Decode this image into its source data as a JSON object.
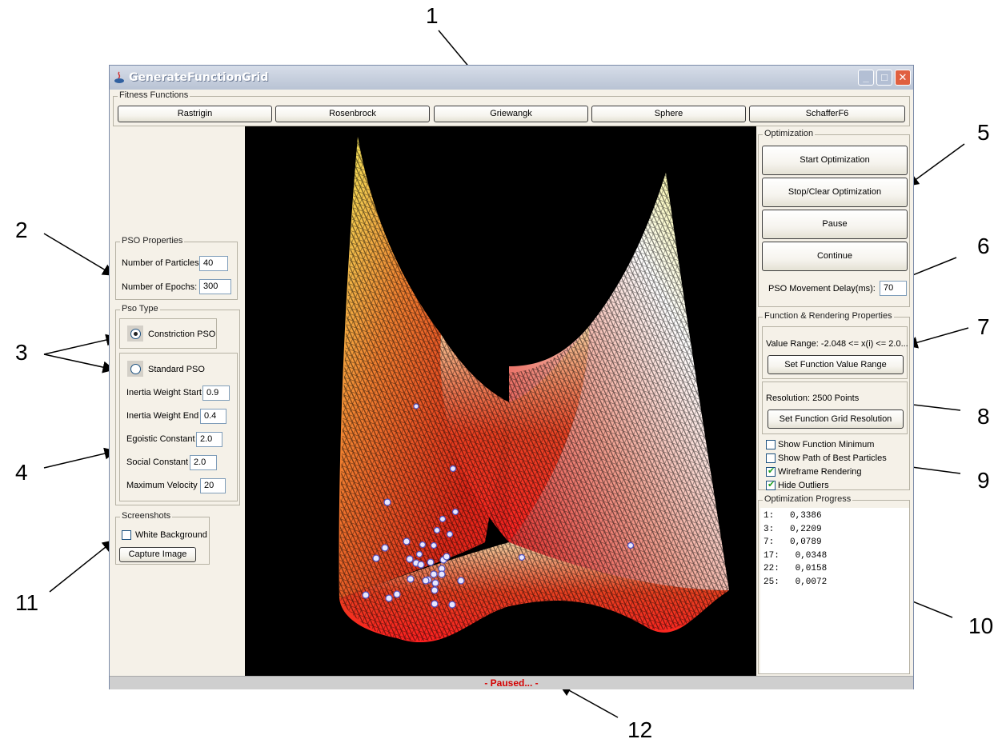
{
  "window": {
    "title": "GenerateFunctionGrid"
  },
  "fitness": {
    "title": "Fitness Functions",
    "buttons": [
      "Rastrigin",
      "Rosenbrock",
      "Griewangk",
      "Sphere",
      "SchafferF6"
    ]
  },
  "pso_props": {
    "title": "PSO Properties",
    "particles_label": "Number of Particles",
    "particles_value": "40",
    "epochs_label": "Number of Epochs:",
    "epochs_value": "300"
  },
  "pso_type": {
    "title": "Pso Type",
    "constriction_label": "Constriction PSO",
    "standard_label": "Standard PSO",
    "params": [
      {
        "label": "Inertia Weight Start",
        "value": "0.9"
      },
      {
        "label": "Inertia Weight End",
        "value": "0.4"
      },
      {
        "label": "Egoistic Constant",
        "value": "2.0"
      },
      {
        "label": "Social Constant",
        "value": "2.0"
      },
      {
        "label": "Maximum Velocity",
        "value": "20"
      }
    ]
  },
  "screenshots": {
    "title": "Screenshots",
    "white_bg_label": "White Background",
    "capture_label": "Capture Image"
  },
  "optimization": {
    "title": "Optimization",
    "start_label": "Start Optimization",
    "stop_label": "Stop/Clear Optimization",
    "pause_label": "Pause",
    "continue_label": "Continue",
    "delay_label": "PSO Movement Delay(ms):",
    "delay_value": "70"
  },
  "rendering": {
    "title": "Function & Rendering Properties",
    "value_range_text": "Value Range: -2.048 <= x(i) <= 2.0...",
    "set_range_label": "Set Function Value Range",
    "resolution_text": "Resolution: 2500 Points",
    "set_resolution_label": "Set Function Grid Resolution",
    "options": [
      {
        "label": "Show Function Minimum",
        "checked": false
      },
      {
        "label": "Show Path of Best Particles",
        "checked": false
      },
      {
        "label": "Wireframe Rendering",
        "checked": true
      },
      {
        "label": "Hide Outliers",
        "checked": true
      }
    ]
  },
  "progress": {
    "title": "Optimization Progress",
    "lines": [
      "1:   0,3386",
      "3:   0,2209",
      "7:   0,0789",
      "17:   0,0348",
      "22:   0,0158",
      "25:   0,0072"
    ]
  },
  "status": {
    "text": "-   Paused...   -"
  },
  "callouts": [
    "1",
    "2",
    "3",
    "4",
    "5",
    "6",
    "7",
    "8",
    "9",
    "10",
    "11",
    "12"
  ],
  "colors": {
    "status_text": "#d40000",
    "canvas_bg": "#000000",
    "accent_link": "#1c5180"
  }
}
